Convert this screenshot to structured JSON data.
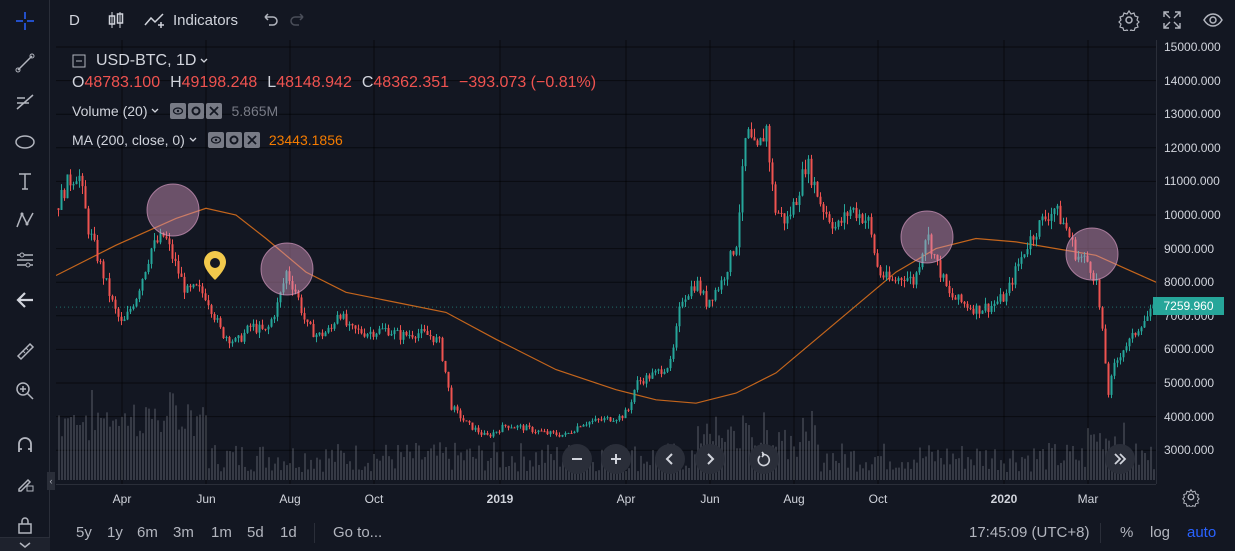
{
  "toolbar": {
    "interval": "D",
    "indicators_label": "Indicators"
  },
  "legend": {
    "symbol": "USD-BTC, 1D",
    "open_key": "O",
    "open": "48783.100",
    "high_key": "H",
    "high": "49198.248",
    "low_key": "L",
    "low": "48148.942",
    "close_key": "C",
    "close": "48362.351",
    "change": "−393.073 (−0.81%)",
    "volume_label": "Volume (20)",
    "volume_value": "5.865M",
    "ma_label": "MA (200, close, 0)",
    "ma_value": "23443.1856"
  },
  "price_axis": {
    "ticks": [
      "15000.000",
      "14000.000",
      "13000.000",
      "12000.000",
      "11000.000",
      "10000.000",
      "9000.000",
      "8000.000",
      "7000.000",
      "6000.000",
      "5000.000",
      "4000.000",
      "3000.000"
    ],
    "last_price": "7259.960"
  },
  "time_axis": {
    "ticks": [
      {
        "label": "Apr",
        "bold": false
      },
      {
        "label": "Jun",
        "bold": false
      },
      {
        "label": "Aug",
        "bold": false
      },
      {
        "label": "Oct",
        "bold": false
      },
      {
        "label": "2019",
        "bold": true
      },
      {
        "label": "Apr",
        "bold": false
      },
      {
        "label": "Jun",
        "bold": false
      },
      {
        "label": "Aug",
        "bold": false
      },
      {
        "label": "Oct",
        "bold": false
      },
      {
        "label": "2020",
        "bold": true
      },
      {
        "label": "Mar",
        "bold": false
      }
    ]
  },
  "bottom_bar": {
    "ranges": [
      "5y",
      "1y",
      "6m",
      "3m",
      "1m",
      "5d",
      "1d"
    ],
    "goto_label": "Go to...",
    "clock": "17:45:09 (UTC+8)",
    "percent_label": "%",
    "log_label": "log",
    "auto_label": "auto"
  },
  "colors": {
    "background": "#131722",
    "up": "#26a69a",
    "down": "#ef5350",
    "ma_line": "#c4651c",
    "accent": "#2962ff",
    "highlight_circle": "#d69ac0",
    "marker": "#f2c94c"
  },
  "icons": {
    "left_toolbar": [
      "crosshair-icon",
      "trend-line-icon",
      "fib-retracement-icon",
      "ellipse-icon",
      "text-icon",
      "pattern-icon",
      "prediction-icon",
      "back-arrow-icon",
      "ruler-icon",
      "zoom-icon",
      "magnet-icon",
      "lock-drawings-icon",
      "lock-icon"
    ],
    "top_right": [
      "settings-icon",
      "fullscreen-icon",
      "eye-icon"
    ]
  }
}
